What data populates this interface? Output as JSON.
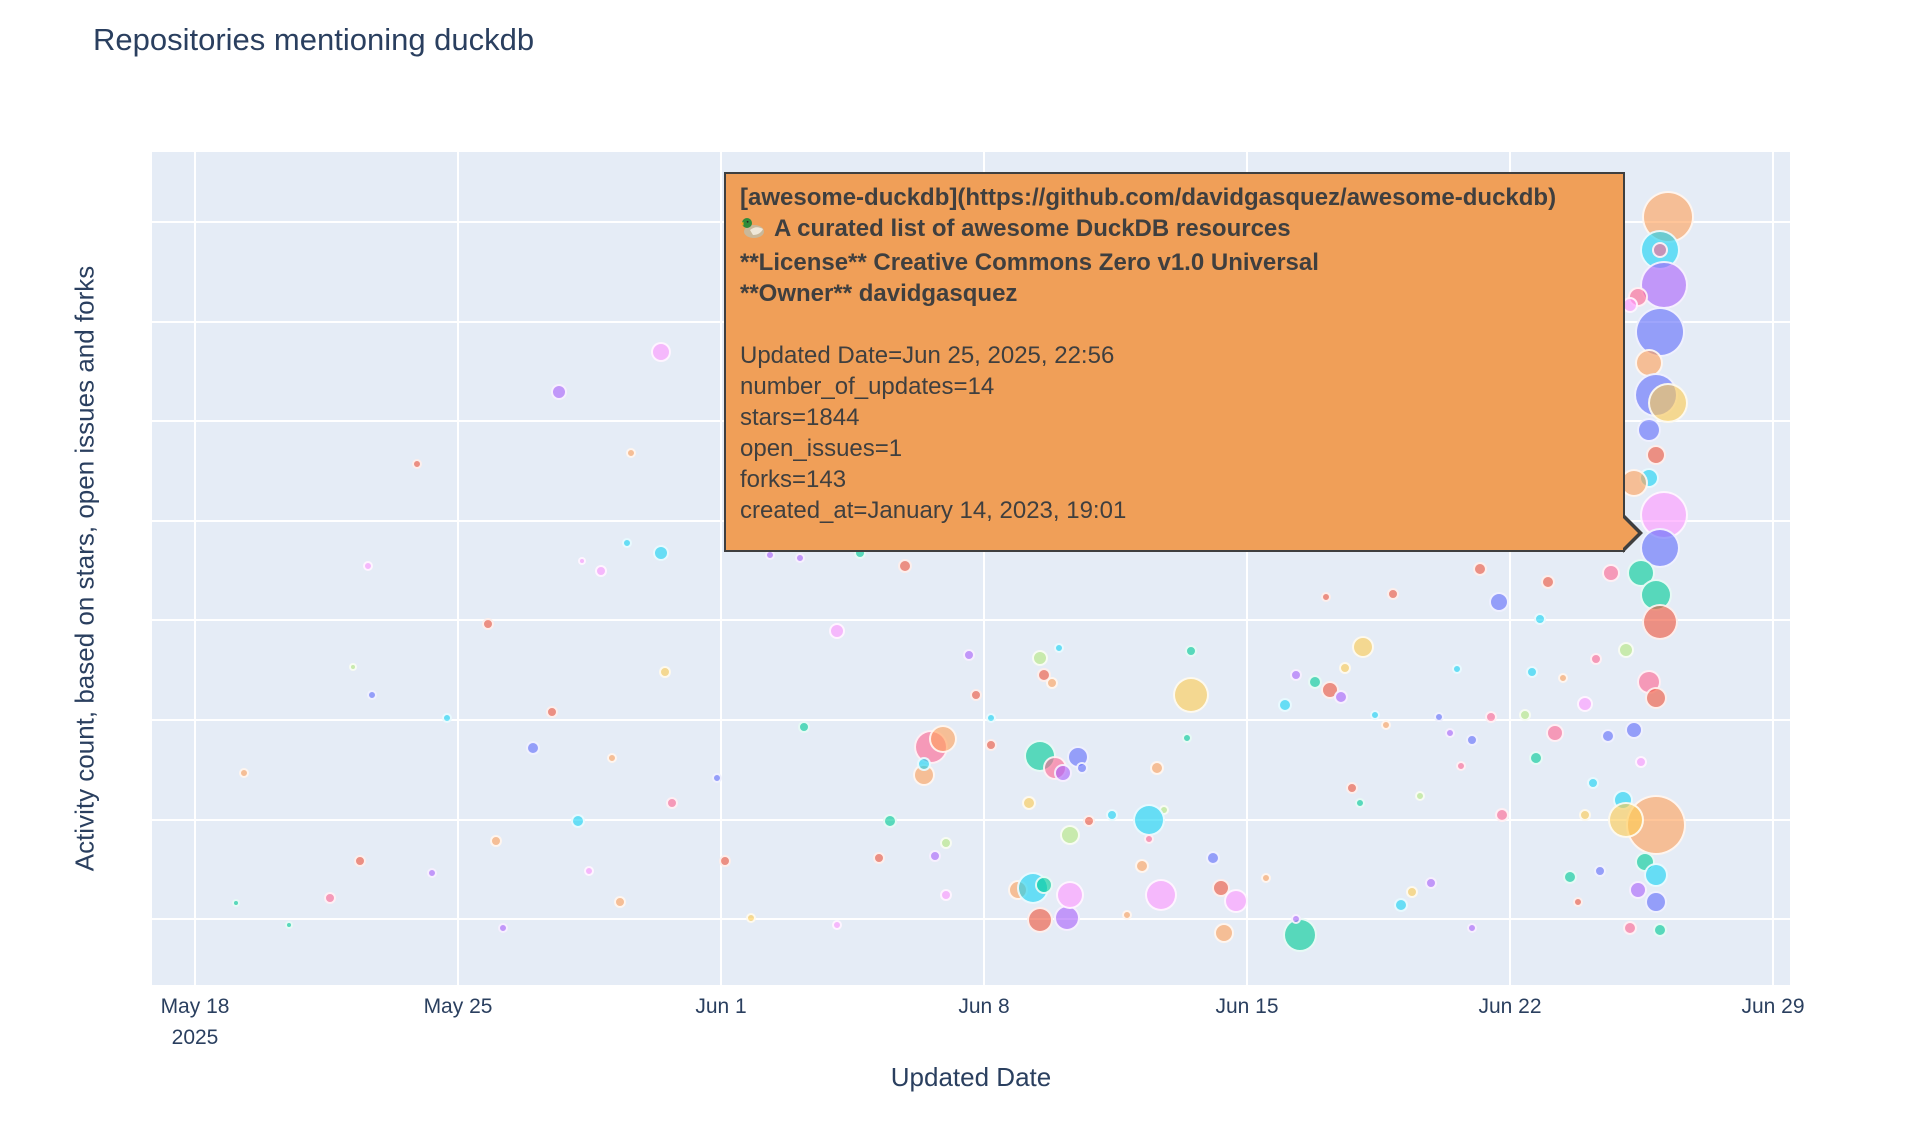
{
  "chart": {
    "title": "Repositories mentioning duckdb",
    "x_axis": {
      "label": "Updated Date",
      "year": "2025"
    },
    "y_axis": {
      "label": "Activity count, based on stars, open issues and forks"
    }
  },
  "tooltip": {
    "icon": "duck-emoji",
    "bold_lines": [
      "[awesome-duckdb](https://github.com/davidgasquez/awesome-duckdb)",
      "A curated list of awesome DuckDB resources",
      "**License** Creative Commons Zero v1.0 Universal",
      "**Owner** davidgasquez"
    ],
    "lines": [
      "Updated Date=Jun 25, 2025, 22:56",
      "number_of_updates=14",
      "stars=1844",
      "open_issues=1",
      "forks=143",
      "created_at=January 14, 2023, 19:01"
    ]
  },
  "chart_data": {
    "type": "scatter",
    "title": "Repositories mentioning duckdb",
    "xlabel": "Updated Date",
    "ylabel": "Activity count, based on stars, open issues and forks",
    "x_ticks": [
      "May 18",
      "May 25",
      "Jun 1",
      "Jun 8",
      "Jun 15",
      "Jun 22",
      "Jun 29"
    ],
    "x_tick_year": "2025",
    "x_range": [
      "May 18, 2025",
      "Jun 29, 2025"
    ],
    "y_tick_labels": "none visible (unlabeled axis)",
    "grid": true,
    "legend": "none",
    "plot_bg": "#e5ecf6",
    "palette": [
      "#636EFA",
      "#EF553B",
      "#00CC96",
      "#AB63FA",
      "#FFA15A",
      "#19D3F3",
      "#FF6692",
      "#B6E880",
      "#FF97FF",
      "#FECB52"
    ],
    "point_format": "[days_since_May18, y_relative_0_100, radius_px, palette_index]",
    "hovered_point": {
      "repo": "awesome-duckdb",
      "url": "https://github.com/davidgasquez/awesome-duckdb",
      "description": "A curated list of awesome DuckDB resources",
      "license": "Creative Commons Zero v1.0 Universal",
      "owner": "davidgasquez",
      "updated_date": "Jun 25, 2025, 22:56",
      "number_of_updates": 14,
      "stars": 1844,
      "open_issues": 1,
      "forks": 143,
      "created_at": "January 14, 2023, 19:01",
      "point": [
        38.7,
        74.7,
        14,
        4
      ]
    },
    "points": [
      [
        1.3,
        25.4,
        5,
        4
      ],
      [
        1.1,
        9.9,
        4,
        2
      ],
      [
        2.5,
        7.2,
        4,
        2
      ],
      [
        3.6,
        10.4,
        6,
        6
      ],
      [
        4.4,
        14.9,
        6,
        1
      ],
      [
        4.7,
        34.8,
        5,
        0
      ],
      [
        4.6,
        50.3,
        5,
        8
      ],
      [
        5.9,
        62.5,
        5,
        1
      ],
      [
        6.3,
        13.4,
        5,
        3
      ],
      [
        6.7,
        32.1,
        5,
        5
      ],
      [
        4.2,
        38.2,
        4,
        7
      ],
      [
        7.8,
        43.3,
        6,
        1
      ],
      [
        8.0,
        17.3,
        6,
        4
      ],
      [
        8.2,
        6.9,
        5,
        3
      ],
      [
        9.0,
        28.5,
        7,
        0
      ],
      [
        9.5,
        32.8,
        6,
        1
      ],
      [
        9.7,
        71.2,
        8,
        3
      ],
      [
        10.2,
        19.7,
        7,
        5
      ],
      [
        10.5,
        13.7,
        5,
        8
      ],
      [
        10.8,
        49.7,
        6,
        8
      ],
      [
        11.1,
        27.2,
        5,
        4
      ],
      [
        11.3,
        10.0,
        6,
        4
      ],
      [
        11.6,
        63.9,
        5,
        4
      ],
      [
        12.4,
        51.9,
        8,
        5
      ],
      [
        12.5,
        37.6,
        6,
        9
      ],
      [
        12.7,
        21.9,
        6,
        6
      ],
      [
        12.4,
        76.0,
        10,
        8
      ],
      [
        13.9,
        24.9,
        5,
        0
      ],
      [
        14.1,
        14.9,
        6,
        1
      ],
      [
        14.8,
        8.1,
        5,
        9
      ],
      [
        11.5,
        53.1,
        5,
        5
      ],
      [
        10.3,
        50.9,
        4,
        8
      ],
      [
        15.3,
        51.6,
        5,
        3
      ],
      [
        16.1,
        51.3,
        5,
        3
      ],
      [
        16.2,
        31.0,
        6,
        2
      ],
      [
        17.1,
        42.5,
        8,
        8
      ],
      [
        17.1,
        7.2,
        5,
        8
      ],
      [
        17.7,
        51.9,
        6,
        2
      ],
      [
        18.2,
        15.2,
        6,
        1
      ],
      [
        18.5,
        19.7,
        7,
        2
      ],
      [
        18.9,
        50.3,
        7,
        1
      ],
      [
        19.6,
        28.6,
        17,
        6
      ],
      [
        19.9,
        29.5,
        14,
        4
      ],
      [
        19.4,
        25.2,
        11,
        4
      ],
      [
        19.4,
        26.5,
        7,
        5
      ],
      [
        20.8,
        34.8,
        6,
        1
      ],
      [
        21.2,
        28.8,
        6,
        1
      ],
      [
        20.0,
        17.0,
        6,
        7
      ],
      [
        20.0,
        10.8,
        6,
        8
      ],
      [
        20.6,
        39.6,
        6,
        3
      ],
      [
        19.7,
        15.5,
        6,
        3
      ],
      [
        21.2,
        32.1,
        5,
        5
      ],
      [
        21.9,
        11.4,
        10,
        4
      ],
      [
        22.2,
        21.8,
        7,
        9
      ],
      [
        22.5,
        39.2,
        8,
        7
      ],
      [
        22.6,
        37.2,
        7,
        1
      ],
      [
        22.8,
        36.3,
        6,
        4
      ],
      [
        22.5,
        27.5,
        16,
        2
      ],
      [
        22.9,
        26.0,
        12,
        6
      ],
      [
        23.5,
        27.4,
        11,
        0
      ],
      [
        23.1,
        25.5,
        9,
        3
      ],
      [
        23.0,
        40.4,
        5,
        5
      ],
      [
        22.3,
        11.7,
        16,
        5
      ],
      [
        22.6,
        12.0,
        9,
        2
      ],
      [
        22.5,
        7.8,
        13,
        1
      ],
      [
        23.2,
        8.0,
        13,
        3
      ],
      [
        23.3,
        18.0,
        10,
        7
      ],
      [
        23.3,
        10.8,
        14,
        8
      ],
      [
        23.6,
        26.0,
        6,
        0
      ],
      [
        23.8,
        19.7,
        6,
        1
      ],
      [
        24.4,
        20.4,
        6,
        5
      ],
      [
        24.8,
        8.4,
        5,
        4
      ],
      [
        25.2,
        14.3,
        7,
        4
      ],
      [
        25.6,
        26.0,
        7,
        4
      ],
      [
        25.8,
        21.0,
        5,
        7
      ],
      [
        25.4,
        19.8,
        16,
        5
      ],
      [
        25.4,
        17.5,
        5,
        6
      ],
      [
        25.7,
        10.8,
        16,
        8
      ],
      [
        26.4,
        29.6,
        5,
        2
      ],
      [
        26.5,
        40.1,
        6,
        2
      ],
      [
        26.5,
        34.8,
        18,
        9
      ],
      [
        27.1,
        15.2,
        7,
        0
      ],
      [
        27.3,
        11.6,
        9,
        1
      ],
      [
        27.4,
        6.2,
        10,
        4
      ],
      [
        27.7,
        10.1,
        12,
        8
      ],
      [
        26.6,
        53.0,
        5,
        6
      ],
      [
        29.0,
        33.6,
        7,
        5
      ],
      [
        29.3,
        37.2,
        6,
        3
      ],
      [
        29.4,
        6.0,
        17,
        2
      ],
      [
        29.8,
        36.4,
        7,
        2
      ],
      [
        30.1,
        46.6,
        5,
        1
      ],
      [
        30.2,
        35.4,
        9,
        1
      ],
      [
        30.5,
        34.6,
        7,
        3
      ],
      [
        30.6,
        38.1,
        6,
        9
      ],
      [
        30.8,
        23.7,
        6,
        1
      ],
      [
        31.0,
        21.9,
        5,
        2
      ],
      [
        31.1,
        40.6,
        11,
        9
      ],
      [
        31.4,
        32.4,
        5,
        5
      ],
      [
        31.7,
        31.2,
        5,
        4
      ],
      [
        31.9,
        46.9,
        6,
        1
      ],
      [
        32.1,
        9.6,
        7,
        5
      ],
      [
        32.4,
        11.2,
        6,
        9
      ],
      [
        32.6,
        22.7,
        5,
        7
      ],
      [
        32.9,
        12.2,
        6,
        3
      ],
      [
        33.1,
        32.2,
        5,
        0
      ],
      [
        33.4,
        30.3,
        5,
        3
      ],
      [
        33.6,
        37.9,
        5,
        5
      ],
      [
        33.7,
        26.3,
        5,
        6
      ],
      [
        34.0,
        29.4,
        6,
        0
      ],
      [
        34.2,
        49.9,
        7,
        1
      ],
      [
        34.5,
        32.2,
        6,
        6
      ],
      [
        34.7,
        46.0,
        10,
        0
      ],
      [
        34.8,
        20.4,
        7,
        6
      ],
      [
        34.0,
        6.9,
        5,
        3
      ],
      [
        29.3,
        7.9,
        5,
        3
      ],
      [
        28.5,
        12.8,
        5,
        4
      ],
      [
        35.4,
        32.4,
        6,
        7
      ],
      [
        35.6,
        37.6,
        6,
        5
      ],
      [
        35.7,
        27.2,
        7,
        2
      ],
      [
        35.8,
        43.9,
        6,
        5
      ],
      [
        36.0,
        48.4,
        7,
        1
      ],
      [
        36.2,
        30.3,
        9,
        6
      ],
      [
        36.4,
        36.9,
        5,
        4
      ],
      [
        36.6,
        13.0,
        7,
        2
      ],
      [
        36.8,
        10.0,
        5,
        1
      ],
      [
        37.0,
        20.4,
        6,
        9
      ],
      [
        37.0,
        33.7,
        8,
        8
      ],
      [
        37.2,
        24.2,
        6,
        5
      ],
      [
        37.3,
        39.1,
        6,
        6
      ],
      [
        37.4,
        13.7,
        6,
        0
      ],
      [
        37.6,
        29.9,
        7,
        0
      ],
      [
        39.2,
        92.2,
        26,
        4
      ],
      [
        39.0,
        88.2,
        20,
        5
      ],
      [
        39.0,
        88.2,
        8,
        6
      ],
      [
        39.1,
        84.0,
        24,
        3
      ],
      [
        38.4,
        82.6,
        10,
        6
      ],
      [
        38.2,
        81.6,
        8,
        8
      ],
      [
        39.0,
        78.4,
        25,
        0
      ],
      [
        38.7,
        74.7,
        14,
        4
      ],
      [
        38.9,
        70.8,
        22,
        0
      ],
      [
        39.2,
        69.9,
        20,
        9
      ],
      [
        38.7,
        66.6,
        12,
        0
      ],
      [
        38.9,
        63.6,
        10,
        1
      ],
      [
        38.7,
        60.9,
        10,
        5
      ],
      [
        38.3,
        60.3,
        14,
        4
      ],
      [
        39.1,
        56.4,
        24,
        8
      ],
      [
        39.0,
        52.5,
        20,
        0
      ],
      [
        37.7,
        49.5,
        9,
        6
      ],
      [
        38.5,
        49.5,
        14,
        2
      ],
      [
        38.9,
        46.8,
        16,
        2
      ],
      [
        39.0,
        43.6,
        18,
        1
      ],
      [
        38.1,
        40.2,
        8,
        7
      ],
      [
        38.7,
        36.4,
        12,
        6
      ],
      [
        38.9,
        34.5,
        11,
        1
      ],
      [
        38.3,
        30.6,
        9,
        0
      ],
      [
        38.5,
        26.8,
        6,
        8
      ],
      [
        38.0,
        22.2,
        10,
        5
      ],
      [
        38.9,
        19.2,
        30,
        4
      ],
      [
        38.1,
        19.8,
        18,
        9
      ],
      [
        38.6,
        14.8,
        10,
        2
      ],
      [
        38.9,
        13.2,
        12,
        5
      ],
      [
        38.4,
        11.4,
        9,
        3
      ],
      [
        38.9,
        10.0,
        11,
        0
      ],
      [
        38.2,
        6.8,
        7,
        6
      ],
      [
        39.0,
        6.6,
        7,
        2
      ]
    ]
  }
}
